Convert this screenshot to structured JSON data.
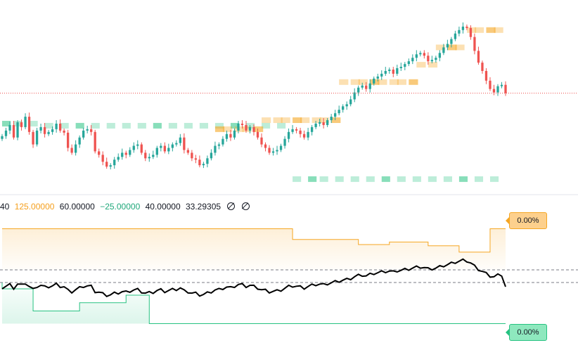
{
  "legend": {
    "v0": "40",
    "v1": "125.00000",
    "v2": "60.00000",
    "v3": "−25.00000",
    "v4": "40.00000",
    "v5": "33.29305"
  },
  "badges": {
    "upper": "0.00%",
    "lower": "0.00%"
  },
  "colors": {
    "up": "#26a69a",
    "down": "#ef5350",
    "resistance": "#f5a623",
    "support": "#26c281",
    "osc": "#000000",
    "price_line": "#ef5350"
  },
  "chart_data": [
    {
      "type": "candlestick",
      "title": "",
      "note": "price values approximate, no axis labels visible",
      "close": [
        142,
        150,
        158,
        140,
        162,
        155,
        170,
        148,
        130,
        150,
        155,
        145,
        148,
        152,
        160,
        150,
        147,
        125,
        118,
        130,
        140,
        150,
        152,
        148,
        120,
        115,
        105,
        98,
        100,
        108,
        112,
        118,
        115,
        122,
        128,
        130,
        118,
        110,
        112,
        115,
        125,
        128,
        120,
        125,
        130,
        132,
        140,
        122,
        118,
        110,
        108,
        100,
        102,
        110,
        118,
        128,
        130,
        138,
        145,
        140,
        150,
        160,
        158,
        150,
        155,
        148,
        140,
        130,
        125,
        118,
        120,
        122,
        128,
        138,
        148,
        152,
        150,
        145,
        140,
        148,
        155,
        160,
        162,
        158,
        165,
        170,
        175,
        180,
        185,
        188,
        195,
        205,
        212,
        215,
        210,
        218,
        225,
        228,
        232,
        236,
        238,
        232,
        240,
        242,
        246,
        250,
        255,
        260,
        262,
        258,
        250,
        252,
        255,
        262,
        270,
        275,
        282,
        290,
        295,
        300,
        298,
        285,
        265,
        248,
        236,
        222,
        210,
        205,
        214,
        216,
        204
      ],
      "support_levels": [
        160,
        160,
        160,
        157,
        157,
        157,
        157,
        157,
        157,
        157,
        157,
        157,
        157,
        157,
        157,
        157,
        157,
        157,
        157,
        80,
        80,
        80,
        80,
        80,
        80,
        80,
        80,
        80,
        80,
        80,
        80,
        80,
        80
      ],
      "resistance_levels": [
        152,
        152,
        152,
        152,
        152,
        165,
        165,
        165,
        165,
        165,
        165,
        165,
        165,
        220,
        220,
        220,
        220,
        220,
        220,
        220,
        220,
        245,
        245,
        270,
        270,
        270,
        295,
        295,
        295,
        295
      ]
    },
    {
      "type": "line",
      "title": "",
      "levels": [
        125.0,
        60.0,
        -25.0,
        40.0
      ],
      "value": 33.29305,
      "ylim": [
        -40,
        140
      ],
      "upper_pct": "0.00%",
      "lower_pct": "0.00%"
    }
  ]
}
